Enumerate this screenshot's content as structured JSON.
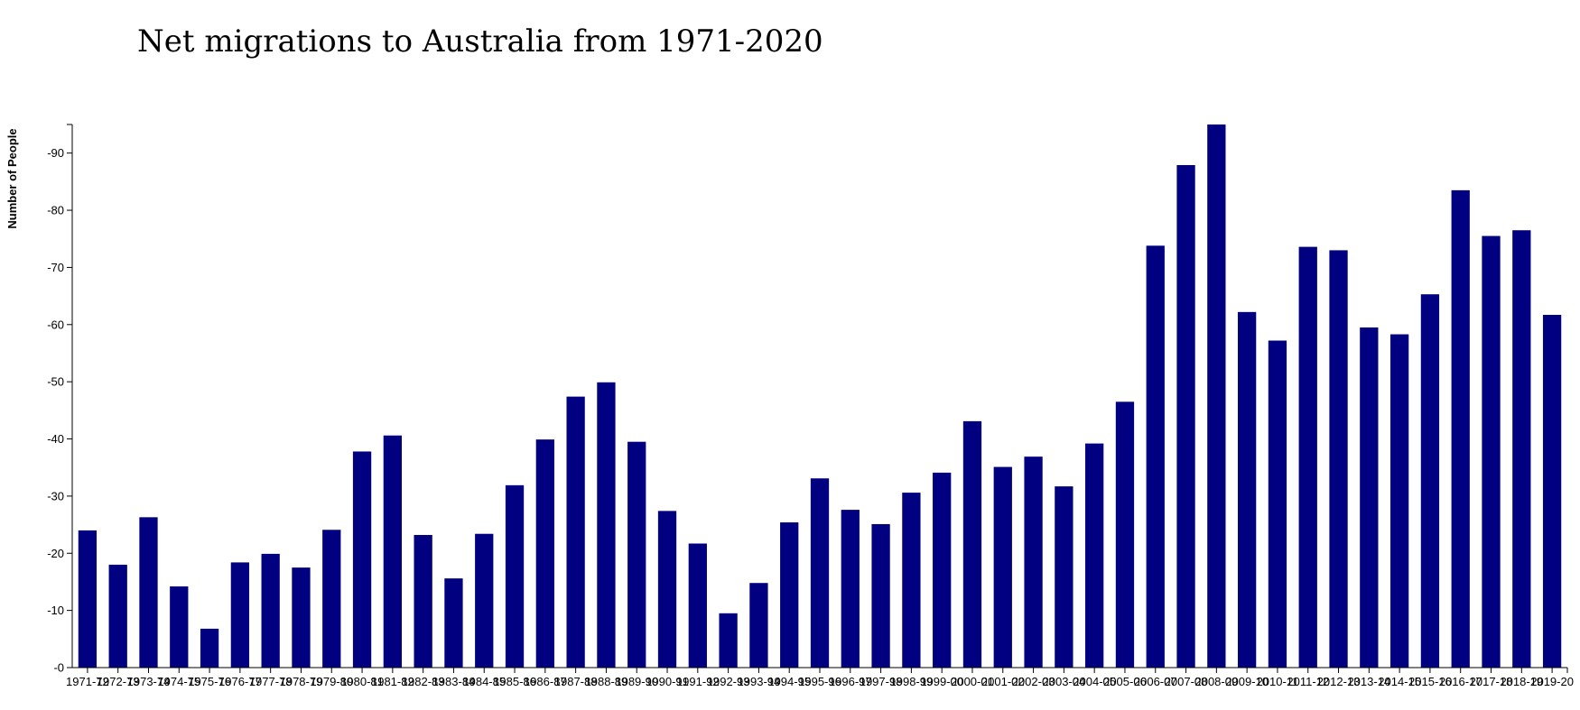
{
  "chart_data": {
    "type": "bar",
    "title": "Net migrations to Australia from 1971-2020",
    "xlabel": "",
    "ylabel": "Number of People",
    "ylim": [
      0,
      95
    ],
    "yticks": [
      0,
      10,
      20,
      30,
      40,
      50,
      60,
      70,
      80,
      90
    ],
    "ytick_labels": [
      "-0",
      "-10",
      "-20",
      "-30",
      "-40",
      "-50",
      "-60",
      "-70",
      "-80",
      "-90"
    ],
    "grid": false,
    "bar_color": "#000080",
    "categories": [
      "1971-72",
      "1972-73",
      "1973-74",
      "1974-75",
      "1975-76",
      "1976-77",
      "1977-78",
      "1978-79",
      "1979-80",
      "1980-81",
      "1981-82",
      "1982-83",
      "1983-84",
      "1984-85",
      "1985-86",
      "1986-87",
      "1987-88",
      "1988-89",
      "1989-90",
      "1990-91",
      "1991-92",
      "1992-93",
      "1993-94",
      "1994-95",
      "1995-96",
      "1996-97",
      "1997-98",
      "1998-99",
      "1999-00",
      "2000-01",
      "2001-02",
      "2002-03",
      "2003-04",
      "2004-05",
      "2005-06",
      "2006-07",
      "2007-08",
      "2008-09",
      "2009-10",
      "2010-11",
      "2011-12",
      "2012-13",
      "2013-14",
      "2014-15",
      "2015-16",
      "2016-17",
      "2017-18",
      "2018-19",
      "2019-20"
    ],
    "values": [
      24,
      18,
      26.3,
      14.2,
      6.8,
      18.4,
      19.9,
      17.5,
      24.1,
      37.8,
      40.6,
      23.2,
      15.6,
      23.4,
      31.9,
      39.9,
      47.4,
      49.9,
      39.5,
      27.4,
      21.7,
      9.5,
      14.8,
      25.4,
      33.1,
      27.6,
      25.1,
      30.6,
      34.1,
      43.1,
      35.1,
      36.9,
      31.7,
      39.2,
      46.5,
      73.8,
      87.9,
      95,
      62.2,
      57.2,
      73.6,
      73,
      59.5,
      58.3,
      65.3,
      83.5,
      75.5,
      76.5,
      61.7
    ]
  }
}
